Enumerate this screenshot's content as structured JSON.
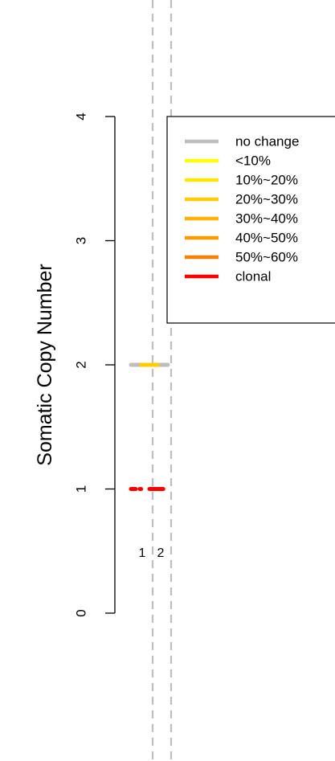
{
  "chart_data": {
    "type": "segment",
    "title": "",
    "xlabel": "",
    "ylabel": "Somatic Copy Number",
    "ylim": [
      0,
      4
    ],
    "y_ticks": [
      0,
      1,
      2,
      3,
      4
    ],
    "grid": false,
    "legend_position": "top-right",
    "legend": [
      {
        "label": "no change",
        "color": "#BEBEBE"
      },
      {
        "label": "<10%",
        "color": "#FFFF00"
      },
      {
        "label": "10%~20%",
        "color": "#FFE500"
      },
      {
        "label": "20%~30%",
        "color": "#FFCC00"
      },
      {
        "label": "30%~40%",
        "color": "#FFB200"
      },
      {
        "label": "40%~50%",
        "color": "#FF9900"
      },
      {
        "label": "50%~60%",
        "color": "#FF7F00"
      },
      {
        "label": "clonal",
        "color": "#FF0000"
      }
    ],
    "chromosomes": [
      {
        "label": "1",
        "boundary_after": true
      },
      {
        "label": "2",
        "boundary_after": true
      }
    ],
    "segments": [
      {
        "chromosome": "1",
        "start": 0.0,
        "end": 0.55,
        "copy_number": 1,
        "color": "#FF0000",
        "dashed": true
      },
      {
        "chromosome": "1",
        "start": 0.0,
        "end": 1.0,
        "copy_number": 2,
        "color": "#BEBEBE",
        "dashed": false
      },
      {
        "chromosome": "1",
        "start": 0.55,
        "end": 1.0,
        "copy_number": 2,
        "color": "#FFCC00",
        "dashed": false
      },
      {
        "chromosome": "2",
        "start": 0.0,
        "end": 0.75,
        "copy_number": 1,
        "color": "#FF0000",
        "dashed": false
      },
      {
        "chromosome": "2",
        "start": 0.0,
        "end": 1.0,
        "copy_number": 2,
        "color": "#BEBEBE",
        "dashed": false
      },
      {
        "chromosome": "2",
        "start": 0.0,
        "end": 0.45,
        "copy_number": 2,
        "color": "#FFCC00",
        "dashed": false
      }
    ]
  }
}
